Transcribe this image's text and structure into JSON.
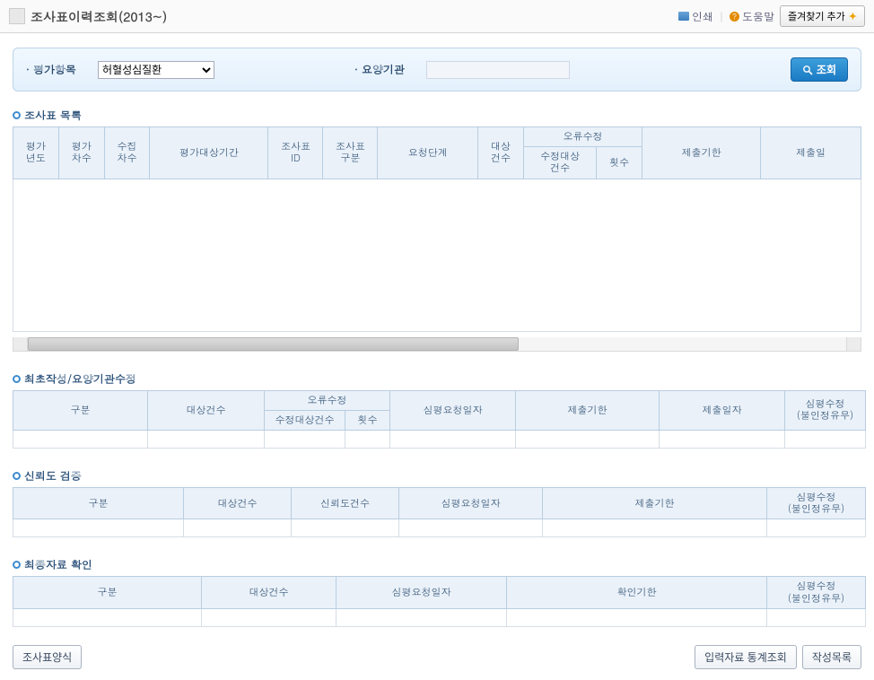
{
  "header": {
    "title": "조사표이력조회(2013~)",
    "print_label": "인쇄",
    "help_label": "도움말",
    "help_mark": "?",
    "favorite_label": "즐겨찾기 추가"
  },
  "search": {
    "item_label": "평가항목",
    "item_value": "허혈성심질환",
    "institution_label": "요양기관",
    "institution_value": "",
    "query_label": "조회"
  },
  "section1": {
    "title": "조사표 목록",
    "columns": {
      "eval_year": "평가\n년도",
      "eval_round": "평가\n차수",
      "collect_round": "수집\n차수",
      "eval_period": "평가대상기간",
      "survey_id": "조사표\nID",
      "survey_type": "조사표\n구분",
      "request_stage": "요청단계",
      "target_count": "대상\n건수",
      "error_group": "오류수정",
      "error_target": "수정대상\n건수",
      "error_count": "횟수",
      "deadline": "제출기한",
      "submit_date": "제출일"
    },
    "col_widths": {
      "eval_year": 50,
      "eval_round": 50,
      "collect_round": 50,
      "eval_period": 130,
      "survey_id": 60,
      "survey_type": 60,
      "request_stage": 110,
      "target_count": 50,
      "error_target": 80,
      "error_count": 50,
      "deadline": 130,
      "submit_date": 110
    }
  },
  "section2": {
    "title": "최초작성/요양기관수정",
    "columns": {
      "gubun": "구분",
      "target_count": "대상건수",
      "error_group": "오류수정",
      "error_target": "수정대상건수",
      "error_count": "횟수",
      "review_date": "심평요청일자",
      "deadline": "제출기한",
      "submit_date": "제출일자",
      "review_edit": "심평수정\n(불인정유무)"
    }
  },
  "section3": {
    "title": "신뢰도 검증",
    "columns": {
      "gubun": "구분",
      "target_count": "대상건수",
      "trust_count": "신뢰도건수",
      "review_date": "심평요청일자",
      "deadline": "제출기한",
      "review_edit": "심평수정\n(불인정유무)"
    }
  },
  "section4": {
    "title": "최종자료 확인",
    "columns": {
      "gubun": "구분",
      "target_count": "대상건수",
      "review_date": "심평요청일자",
      "confirm_deadline": "확인기한",
      "review_edit": "심평수정\n(불인정유무)"
    }
  },
  "footer": {
    "survey_form": "조사표양식",
    "stats_query": "입력자료 통계조회",
    "write_list": "작성목록"
  },
  "colors": {
    "header_bg": "#eaf1f9",
    "border": "#b9cde0",
    "accent": "#1a7ac4"
  }
}
